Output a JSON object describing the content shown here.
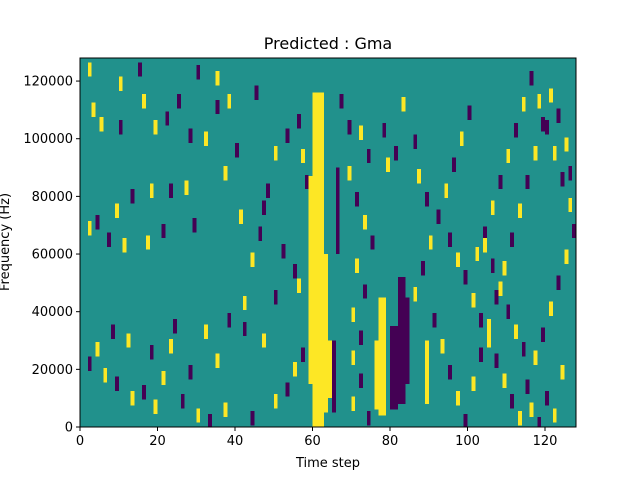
{
  "chart_data": {
    "type": "heatmap",
    "title": "Predicted : Gma",
    "xlabel": "Time step",
    "ylabel": "Frequency (Hz)",
    "xlim": [
      0,
      128
    ],
    "ylim": [
      0,
      128000
    ],
    "xticks": [
      0,
      20,
      40,
      60,
      80,
      100,
      120
    ],
    "yticks": [
      0,
      20000,
      40000,
      60000,
      80000,
      100000,
      120000
    ],
    "grid": false,
    "colormap": {
      "low": "#440154",
      "mid": "#21918c",
      "high": "#fde725"
    },
    "value_levels": [
      "low",
      "mid",
      "high"
    ],
    "default_level": "mid",
    "n_time_steps": 128,
    "n_freq_bins": 128,
    "blocks": [
      {
        "level": "high",
        "t": [
          60,
          63
        ],
        "f": [
          0,
          116000
        ]
      },
      {
        "level": "high",
        "t": [
          59,
          60
        ],
        "f": [
          15000,
          87000
        ]
      },
      {
        "level": "high",
        "t": [
          63,
          64
        ],
        "f": [
          5000,
          60000
        ]
      },
      {
        "level": "high",
        "t": [
          64,
          65
        ],
        "f": [
          10000,
          30000
        ]
      },
      {
        "level": "high",
        "t": [
          77,
          79
        ],
        "f": [
          4000,
          45000
        ]
      },
      {
        "level": "high",
        "t": [
          76,
          77
        ],
        "f": [
          6000,
          30000
        ]
      },
      {
        "level": "high",
        "t": [
          89,
          90
        ],
        "f": [
          8000,
          30000
        ]
      },
      {
        "level": "low",
        "t": [
          80,
          82
        ],
        "f": [
          6000,
          35000
        ]
      },
      {
        "level": "low",
        "t": [
          82,
          84
        ],
        "f": [
          8000,
          52000
        ]
      },
      {
        "level": "low",
        "t": [
          84,
          85
        ],
        "f": [
          15000,
          45000
        ]
      },
      {
        "level": "low",
        "t": [
          65,
          66
        ],
        "f": [
          5000,
          30000
        ]
      },
      {
        "level": "low",
        "t": [
          66,
          67
        ],
        "f": [
          60000,
          90000
        ]
      }
    ],
    "cells": [
      {
        "level": "high",
        "t": 2,
        "f": 124000
      },
      {
        "level": "high",
        "t": 10,
        "f": 119000
      },
      {
        "level": "low",
        "t": 15,
        "f": 124000
      },
      {
        "level": "low",
        "t": 30,
        "f": 123000
      },
      {
        "level": "high",
        "t": 35,
        "f": 121000
      },
      {
        "level": "low",
        "t": 45,
        "f": 116000
      },
      {
        "level": "high",
        "t": 38,
        "f": 113000
      },
      {
        "level": "low",
        "t": 25,
        "f": 113000
      },
      {
        "level": "low",
        "t": 35,
        "f": 111000
      },
      {
        "level": "high",
        "t": 3,
        "f": 110000
      },
      {
        "level": "high",
        "t": 5,
        "f": 105000
      },
      {
        "level": "low",
        "t": 10,
        "f": 104000
      },
      {
        "level": "high",
        "t": 16,
        "f": 113000
      },
      {
        "level": "low",
        "t": 22,
        "f": 107000
      },
      {
        "level": "high",
        "t": 19,
        "f": 104000
      },
      {
        "level": "low",
        "t": 28,
        "f": 101000
      },
      {
        "level": "high",
        "t": 32,
        "f": 100000
      },
      {
        "level": "low",
        "t": 40,
        "f": 96000
      },
      {
        "level": "high",
        "t": 50,
        "f": 95000
      },
      {
        "level": "low",
        "t": 53,
        "f": 101000
      },
      {
        "level": "low",
        "t": 56,
        "f": 106000
      },
      {
        "level": "high",
        "t": 57,
        "f": 94000
      },
      {
        "level": "low",
        "t": 58,
        "f": 85000
      },
      {
        "level": "high",
        "t": 37,
        "f": 88000
      },
      {
        "level": "low",
        "t": 48,
        "f": 82000
      },
      {
        "level": "low",
        "t": 47,
        "f": 76000
      },
      {
        "level": "high",
        "t": 27,
        "f": 83000
      },
      {
        "level": "low",
        "t": 23,
        "f": 82000
      },
      {
        "level": "high",
        "t": 18,
        "f": 82000
      },
      {
        "level": "low",
        "t": 13,
        "f": 80000
      },
      {
        "level": "high",
        "t": 9,
        "f": 75000
      },
      {
        "level": "low",
        "t": 4,
        "f": 71000
      },
      {
        "level": "high",
        "t": 2,
        "f": 69000
      },
      {
        "level": "low",
        "t": 7,
        "f": 65000
      },
      {
        "level": "high",
        "t": 11,
        "f": 63000
      },
      {
        "level": "low",
        "t": 21,
        "f": 68000
      },
      {
        "level": "high",
        "t": 17,
        "f": 64000
      },
      {
        "level": "low",
        "t": 29,
        "f": 70000
      },
      {
        "level": "high",
        "t": 41,
        "f": 73000
      },
      {
        "level": "low",
        "t": 46,
        "f": 67000
      },
      {
        "level": "high",
        "t": 44,
        "f": 58000
      },
      {
        "level": "low",
        "t": 52,
        "f": 61000
      },
      {
        "level": "low",
        "t": 55,
        "f": 54000
      },
      {
        "level": "high",
        "t": 56,
        "f": 49000
      },
      {
        "level": "low",
        "t": 50,
        "f": 45000
      },
      {
        "level": "high",
        "t": 42,
        "f": 43000
      },
      {
        "level": "low",
        "t": 38,
        "f": 37000
      },
      {
        "level": "high",
        "t": 32,
        "f": 33000
      },
      {
        "level": "low",
        "t": 24,
        "f": 35000
      },
      {
        "level": "high",
        "t": 23,
        "f": 28000
      },
      {
        "level": "low",
        "t": 18,
        "f": 26000
      },
      {
        "level": "high",
        "t": 12,
        "f": 30000
      },
      {
        "level": "low",
        "t": 8,
        "f": 33000
      },
      {
        "level": "high",
        "t": 4,
        "f": 27000
      },
      {
        "level": "low",
        "t": 2,
        "f": 22000
      },
      {
        "level": "high",
        "t": 6,
        "f": 18000
      },
      {
        "level": "low",
        "t": 9,
        "f": 15000
      },
      {
        "level": "high",
        "t": 13,
        "f": 10000
      },
      {
        "level": "low",
        "t": 16,
        "f": 12000
      },
      {
        "level": "high",
        "t": 19,
        "f": 7000
      },
      {
        "level": "low",
        "t": 26,
        "f": 9000
      },
      {
        "level": "high",
        "t": 30,
        "f": 4000
      },
      {
        "level": "low",
        "t": 33,
        "f": 2000
      },
      {
        "level": "high",
        "t": 37,
        "f": 6000
      },
      {
        "level": "low",
        "t": 44,
        "f": 3000
      },
      {
        "level": "high",
        "t": 50,
        "f": 9000
      },
      {
        "level": "low",
        "t": 53,
        "f": 13000
      },
      {
        "level": "high",
        "t": 55,
        "f": 20000
      },
      {
        "level": "low",
        "t": 57,
        "f": 25000
      },
      {
        "level": "high",
        "t": 47,
        "f": 30000
      },
      {
        "level": "low",
        "t": 42,
        "f": 34000
      },
      {
        "level": "high",
        "t": 35,
        "f": 23000
      },
      {
        "level": "low",
        "t": 28,
        "f": 19000
      },
      {
        "level": "high",
        "t": 21,
        "f": 17000
      },
      {
        "level": "low",
        "t": 67,
        "f": 113000
      },
      {
        "level": "low",
        "t": 69,
        "f": 104000
      },
      {
        "level": "high",
        "t": 72,
        "f": 102000
      },
      {
        "level": "low",
        "t": 74,
        "f": 94000
      },
      {
        "level": "high",
        "t": 69,
        "f": 88000
      },
      {
        "level": "low",
        "t": 71,
        "f": 79000
      },
      {
        "level": "high",
        "t": 73,
        "f": 71000
      },
      {
        "level": "low",
        "t": 75,
        "f": 64000
      },
      {
        "level": "high",
        "t": 71,
        "f": 56000
      },
      {
        "level": "low",
        "t": 73,
        "f": 47000
      },
      {
        "level": "high",
        "t": 70,
        "f": 39000
      },
      {
        "level": "low",
        "t": 72,
        "f": 31000
      },
      {
        "level": "high",
        "t": 70,
        "f": 24000
      },
      {
        "level": "low",
        "t": 72,
        "f": 16000
      },
      {
        "level": "high",
        "t": 70,
        "f": 8000
      },
      {
        "level": "low",
        "t": 74,
        "f": 3000
      },
      {
        "level": "low",
        "t": 78,
        "f": 103000
      },
      {
        "level": "high",
        "t": 79,
        "f": 91000
      },
      {
        "level": "low",
        "t": 81,
        "f": 95000
      },
      {
        "level": "high",
        "t": 83,
        "f": 112000
      },
      {
        "level": "low",
        "t": 86,
        "f": 99000
      },
      {
        "level": "high",
        "t": 87,
        "f": 87000
      },
      {
        "level": "low",
        "t": 89,
        "f": 79000
      },
      {
        "level": "high",
        "t": 92,
        "f": 73000
      },
      {
        "level": "low",
        "t": 95,
        "f": 65000
      },
      {
        "level": "high",
        "t": 97,
        "f": 58000
      },
      {
        "level": "low",
        "t": 99,
        "f": 52000
      },
      {
        "level": "high",
        "t": 101,
        "f": 44000
      },
      {
        "level": "low",
        "t": 103,
        "f": 37000
      },
      {
        "level": "high",
        "t": 105,
        "f": 30000
      },
      {
        "level": "low",
        "t": 107,
        "f": 23000
      },
      {
        "level": "high",
        "t": 109,
        "f": 16000
      },
      {
        "level": "low",
        "t": 111,
        "f": 9000
      },
      {
        "level": "high",
        "t": 113,
        "f": 3000
      },
      {
        "level": "low",
        "t": 115,
        "f": 14000
      },
      {
        "level": "high",
        "t": 117,
        "f": 24000
      },
      {
        "level": "low",
        "t": 119,
        "f": 32000
      },
      {
        "level": "high",
        "t": 121,
        "f": 41000
      },
      {
        "level": "low",
        "t": 123,
        "f": 50000
      },
      {
        "level": "high",
        "t": 125,
        "f": 59000
      },
      {
        "level": "low",
        "t": 127,
        "f": 68000
      },
      {
        "level": "high",
        "t": 126,
        "f": 77000
      },
      {
        "level": "low",
        "t": 124,
        "f": 86000
      },
      {
        "level": "high",
        "t": 122,
        "f": 95000
      },
      {
        "level": "low",
        "t": 120,
        "f": 104000
      },
      {
        "level": "high",
        "t": 118,
        "f": 113000
      },
      {
        "level": "low",
        "t": 116,
        "f": 121000
      },
      {
        "level": "high",
        "t": 114,
        "f": 112000
      },
      {
        "level": "low",
        "t": 112,
        "f": 103000
      },
      {
        "level": "high",
        "t": 110,
        "f": 94000
      },
      {
        "level": "low",
        "t": 108,
        "f": 85000
      },
      {
        "level": "high",
        "t": 106,
        "f": 76000
      },
      {
        "level": "low",
        "t": 104,
        "f": 67000
      },
      {
        "level": "high",
        "t": 102,
        "f": 60000
      },
      {
        "level": "low",
        "t": 100,
        "f": 109000
      },
      {
        "level": "high",
        "t": 98,
        "f": 100000
      },
      {
        "level": "low",
        "t": 96,
        "f": 91000
      },
      {
        "level": "high",
        "t": 94,
        "f": 82000
      },
      {
        "level": "low",
        "t": 92,
        "f": 73000
      },
      {
        "level": "high",
        "t": 90,
        "f": 64000
      },
      {
        "level": "low",
        "t": 88,
        "f": 55000
      },
      {
        "level": "high",
        "t": 86,
        "f": 46000
      },
      {
        "level": "low",
        "t": 91,
        "f": 37000
      },
      {
        "level": "high",
        "t": 93,
        "f": 28000
      },
      {
        "level": "low",
        "t": 95,
        "f": 19000
      },
      {
        "level": "high",
        "t": 97,
        "f": 10000
      },
      {
        "level": "low",
        "t": 99,
        "f": 2000
      },
      {
        "level": "high",
        "t": 101,
        "f": 15000
      },
      {
        "level": "low",
        "t": 103,
        "f": 25000
      },
      {
        "level": "high",
        "t": 105,
        "f": 35000
      },
      {
        "level": "low",
        "t": 107,
        "f": 45000
      },
      {
        "level": "high",
        "t": 109,
        "f": 55000
      },
      {
        "level": "low",
        "t": 111,
        "f": 65000
      },
      {
        "level": "high",
        "t": 113,
        "f": 75000
      },
      {
        "level": "low",
        "t": 115,
        "f": 85000
      },
      {
        "level": "high",
        "t": 117,
        "f": 95000
      },
      {
        "level": "low",
        "t": 119,
        "f": 105000
      },
      {
        "level": "high",
        "t": 121,
        "f": 115000
      },
      {
        "level": "low",
        "t": 123,
        "f": 108000
      },
      {
        "level": "high",
        "t": 125,
        "f": 98000
      },
      {
        "level": "low",
        "t": 126,
        "f": 88000
      },
      {
        "level": "high",
        "t": 124,
        "f": 19000
      },
      {
        "level": "low",
        "t": 120,
        "f": 10000
      },
      {
        "level": "high",
        "t": 122,
        "f": 4000
      },
      {
        "level": "low",
        "t": 118,
        "f": 1000
      },
      {
        "level": "high",
        "t": 116,
        "f": 6000
      },
      {
        "level": "low",
        "t": 114,
        "f": 27000
      },
      {
        "level": "high",
        "t": 112,
        "f": 33000
      },
      {
        "level": "low",
        "t": 110,
        "f": 40000
      },
      {
        "level": "high",
        "t": 108,
        "f": 48000
      },
      {
        "level": "low",
        "t": 106,
        "f": 56000
      },
      {
        "level": "high",
        "t": 104,
        "f": 63000
      }
    ]
  }
}
